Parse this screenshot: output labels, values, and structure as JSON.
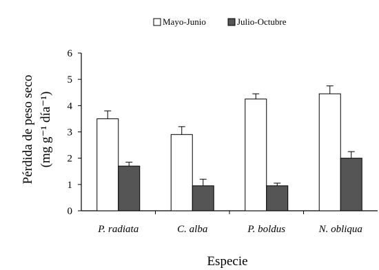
{
  "chart_data": {
    "type": "bar",
    "categories": [
      "P. radiata",
      "C. alba",
      "P. boldus",
      "N. obliqua"
    ],
    "series": [
      {
        "name": "Mayo-Junio",
        "values": [
          3.5,
          2.9,
          4.25,
          4.45
        ],
        "errors": [
          0.3,
          0.3,
          0.2,
          0.3
        ],
        "color": "#ffffff"
      },
      {
        "name": "Julio-Octubre",
        "values": [
          1.7,
          0.95,
          0.95,
          2.0
        ],
        "errors": [
          0.15,
          0.25,
          0.1,
          0.25
        ],
        "color": "#555555"
      }
    ],
    "xlabel": "Especie",
    "ylabel_line1": "Pérdida de peso seco",
    "ylabel_line2": "(mg g⁻¹ día⁻¹)",
    "ylim": [
      0,
      6
    ],
    "yticks": [
      "0",
      "1",
      "2",
      "3",
      "4",
      "5",
      "6"
    ],
    "legend_position": "top-center",
    "grid": false
  }
}
